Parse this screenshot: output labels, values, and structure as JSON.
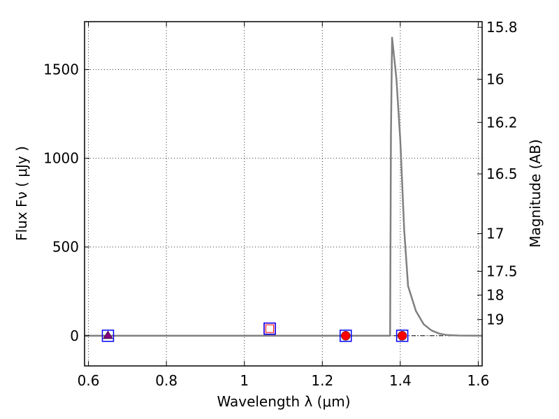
{
  "chart_data": {
    "type": "line",
    "xlabel": "Wavelength  λ (μm)",
    "ylabel": "Flux  Fν  ( μJy )",
    "y2label": "Magnitude (AB)",
    "xlim": [
      0.59,
      1.61
    ],
    "ylim": [
      -170,
      1770
    ],
    "grid": true,
    "x_ticks": [
      0.6,
      0.8,
      1.0,
      1.2,
      1.4,
      1.6
    ],
    "x_tick_labels": [
      "0.6",
      "0.8",
      "1",
      "1.2",
      "1.4",
      "1.6"
    ],
    "y_ticks": [
      0,
      500,
      1000,
      1500
    ],
    "y_tick_labels": [
      "0",
      "500",
      "1000",
      "1500"
    ],
    "mag_ticks": [
      15.8,
      16,
      16.2,
      16.5,
      17,
      17.5,
      18,
      19
    ],
    "mag_tick_labels": [
      "15.8",
      "16",
      "16.2",
      "16.5",
      "17",
      "17.5",
      "18",
      "19"
    ],
    "series": [
      {
        "kind": "line",
        "color": "#808080",
        "x": [
          0.59,
          1.3,
          1.374,
          1.376,
          1.379,
          1.39,
          1.4,
          1.41,
          1.42,
          1.44,
          1.46,
          1.48,
          1.5,
          1.52,
          1.55,
          1.61
        ],
        "y": [
          0,
          0,
          0,
          1130,
          1680,
          1450,
          1100,
          600,
          280,
          140,
          65,
          30,
          12,
          4,
          1,
          0
        ]
      },
      {
        "kind": "open-square",
        "color": "#0000ff",
        "x": [
          0.65,
          1.26,
          1.405
        ],
        "y": [
          0,
          0,
          0
        ]
      },
      {
        "kind": "open-square",
        "color": "#ff0000",
        "x": [
          1.065
        ],
        "y": [
          40
        ]
      },
      {
        "kind": "circle",
        "color": "#ff0000",
        "x": [
          1.26,
          1.405
        ],
        "y": [
          0,
          0
        ]
      },
      {
        "kind": "triangle",
        "color": "#800080",
        "x": [
          0.65
        ],
        "y": [
          0
        ]
      }
    ],
    "zero_line": {
      "color": "#000000",
      "style": "dash-dot"
    }
  }
}
